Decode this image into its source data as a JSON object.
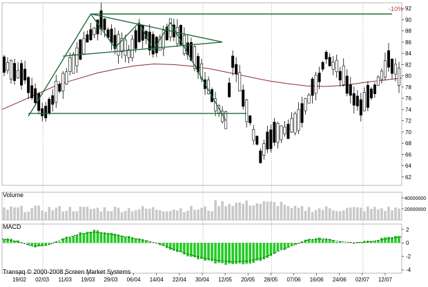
{
  "chart_data": {
    "type": "candlestick",
    "price_panel": {
      "corner_label": "-10%",
      "ylim": [
        60.5,
        93
      ],
      "y_ticks": [
        62,
        64,
        66,
        68,
        70,
        72,
        74,
        76,
        78,
        80,
        82,
        84,
        86,
        88,
        90,
        92
      ],
      "ma_trend": [
        74,
        75.5,
        77,
        78.5,
        79.5,
        80.5,
        81.2,
        81.8,
        82.1,
        82,
        81.7,
        81.2,
        80.5,
        79.8,
        79.1,
        78.6,
        78.2,
        78.1,
        78.3,
        78.8,
        79.2,
        79.6
      ]
    },
    "volume_panel": {
      "label": "Volume",
      "y_ticks": [
        "40000000",
        "20000000"
      ],
      "ylim": [
        0,
        50000000
      ]
    },
    "macd_panel": {
      "label": "MACD",
      "y_ticks": [
        2,
        0,
        -2,
        -4
      ],
      "ylim": [
        -4.5,
        2.8
      ],
      "signal": [
        0.6,
        0.2,
        -0.5,
        -0.3,
        0.6,
        1.3,
        1.6,
        1.3,
        0.9,
        0.5,
        0.0,
        -0.8,
        -1.6,
        -2.2,
        -2.6,
        -2.8,
        -2.7,
        -2.2,
        -1.2,
        -0.3,
        0.5,
        0.6,
        0.2,
        0.0,
        0.2,
        0.6,
        0.9
      ]
    },
    "x_labels": [
      "19/02",
      "02/03",
      "11/03",
      "19/03",
      "29/03",
      "06/04",
      "14/04",
      "22/04",
      "30/04",
      "12/05",
      "20/05",
      "28/05",
      "07/06",
      "16/06",
      "24/06",
      "02/07",
      "12/07"
    ],
    "separator_dates": [
      "02/03",
      "30/04",
      "28/05",
      "02/07"
    ],
    "footer": "Transaq © 2000-2008 Screen Market Systems"
  }
}
